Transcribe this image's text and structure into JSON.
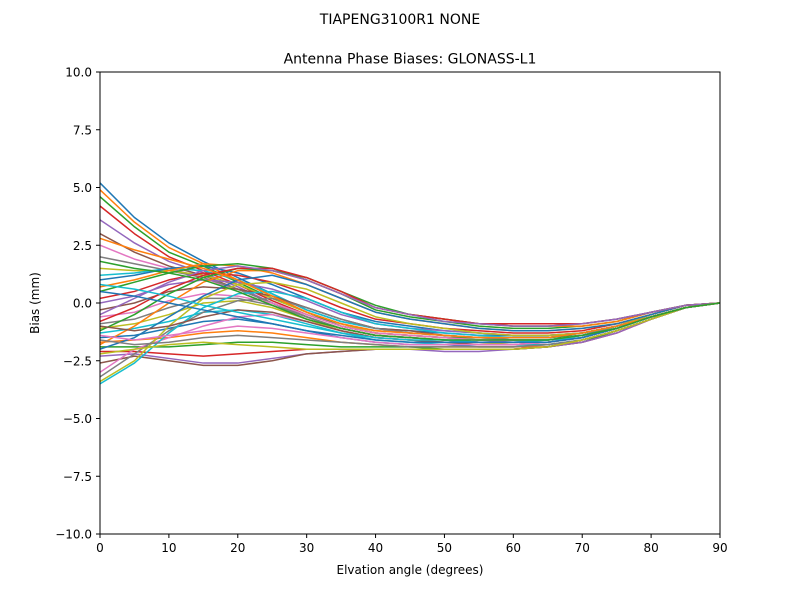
{
  "figure": {
    "suptitle": "TIAPENG3100R1   NONE"
  },
  "chart_data": {
    "type": "line",
    "title": "Antenna Phase Biases: GLONASS-L1",
    "xlabel": "Elvation angle (degrees)",
    "ylabel": "Bias (mm)",
    "xlim": [
      0,
      90
    ],
    "ylim": [
      -10,
      10
    ],
    "xticks": [
      0,
      10,
      20,
      30,
      40,
      50,
      60,
      70,
      80,
      90
    ],
    "yticks": [
      -10.0,
      -7.5,
      -5.0,
      -2.5,
      0.0,
      2.5,
      5.0,
      7.5,
      10.0
    ],
    "xtick_labels": [
      "0",
      "10",
      "20",
      "30",
      "40",
      "50",
      "60",
      "70",
      "80",
      "90"
    ],
    "ytick_labels": [
      "−10.0",
      "−7.5",
      "−5.0",
      "−2.5",
      "0.0",
      "2.5",
      "5.0",
      "7.5",
      "10.0"
    ],
    "grid": false,
    "legend": "none",
    "colors": [
      "#1f77b4",
      "#ff7f0e",
      "#2ca02c",
      "#d62728",
      "#9467bd",
      "#8c564b",
      "#e377c2",
      "#7f7f7f",
      "#bcbd22",
      "#17becf"
    ],
    "x": [
      0,
      5,
      10,
      15,
      20,
      25,
      30,
      35,
      40,
      45,
      50,
      55,
      60,
      65,
      70,
      75,
      80,
      85,
      90
    ],
    "series": [
      {
        "values": [
          5.2,
          3.7,
          2.6,
          1.8,
          1.1,
          0.4,
          -0.3,
          -0.8,
          -1.1,
          -1.2,
          -1.3,
          -1.4,
          -1.4,
          -1.4,
          -1.3,
          -1.0,
          -0.6,
          -0.2,
          0.0
        ]
      },
      {
        "values": [
          4.9,
          3.5,
          2.4,
          1.7,
          1.0,
          0.3,
          -0.4,
          -0.9,
          -1.2,
          -1.3,
          -1.4,
          -1.5,
          -1.5,
          -1.5,
          -1.3,
          -1.0,
          -0.6,
          -0.2,
          0.0
        ]
      },
      {
        "values": [
          4.6,
          3.3,
          2.2,
          1.6,
          0.9,
          0.2,
          -0.4,
          -1.0,
          -1.3,
          -1.4,
          -1.5,
          -1.5,
          -1.5,
          -1.5,
          -1.4,
          -1.0,
          -0.6,
          -0.2,
          0.0
        ]
      },
      {
        "values": [
          4.2,
          3.0,
          2.0,
          1.4,
          0.8,
          0.1,
          -0.5,
          -1.0,
          -1.3,
          -1.4,
          -1.5,
          -1.6,
          -1.6,
          -1.6,
          -1.4,
          -1.1,
          -0.6,
          -0.2,
          0.0
        ]
      },
      {
        "values": [
          3.6,
          2.6,
          1.8,
          1.3,
          0.7,
          0.0,
          -0.6,
          -1.1,
          -1.4,
          -1.5,
          -1.6,
          -1.6,
          -1.7,
          -1.6,
          -1.4,
          -1.1,
          -0.6,
          -0.2,
          0.0
        ]
      },
      {
        "values": [
          3.0,
          2.2,
          1.6,
          1.2,
          0.6,
          0.0,
          -0.6,
          -1.1,
          -1.4,
          -1.5,
          -1.6,
          -1.7,
          -1.7,
          -1.7,
          -1.5,
          -1.1,
          -0.6,
          -0.2,
          0.0
        ]
      },
      {
        "values": [
          2.5,
          1.9,
          1.5,
          1.1,
          0.5,
          -0.1,
          -0.7,
          -1.2,
          -1.5,
          -1.6,
          -1.7,
          -1.7,
          -1.8,
          -1.7,
          -1.5,
          -1.1,
          -0.6,
          -0.2,
          0.0
        ]
      },
      {
        "values": [
          2.0,
          1.7,
          1.4,
          1.1,
          0.6,
          0.0,
          -0.6,
          -1.1,
          -1.4,
          -1.5,
          -1.6,
          -1.7,
          -1.7,
          -1.7,
          -1.5,
          -1.1,
          -0.6,
          -0.2,
          0.0
        ]
      },
      {
        "values": [
          1.5,
          1.4,
          1.4,
          1.2,
          0.8,
          0.2,
          -0.4,
          -0.9,
          -1.3,
          -1.4,
          -1.5,
          -1.6,
          -1.6,
          -1.6,
          -1.4,
          -1.1,
          -0.6,
          -0.2,
          0.0
        ]
      },
      {
        "values": [
          1.2,
          1.3,
          1.5,
          1.4,
          1.0,
          0.4,
          -0.3,
          -0.8,
          -1.1,
          -1.3,
          -1.4,
          -1.5,
          -1.6,
          -1.6,
          -1.4,
          -1.0,
          -0.6,
          -0.2,
          0.0
        ]
      },
      {
        "values": [
          1.0,
          1.2,
          1.5,
          1.6,
          1.3,
          0.8,
          0.2,
          -0.4,
          -0.8,
          -1.0,
          -1.2,
          -1.3,
          -1.4,
          -1.4,
          -1.3,
          -1.0,
          -0.6,
          -0.2,
          0.0
        ]
      },
      {
        "values": [
          0.7,
          1.0,
          1.4,
          1.7,
          1.6,
          1.3,
          0.8,
          0.2,
          -0.4,
          -0.7,
          -0.9,
          -1.1,
          -1.2,
          -1.2,
          -1.1,
          -0.9,
          -0.5,
          -0.1,
          0.0
        ]
      },
      {
        "values": [
          0.5,
          0.9,
          1.3,
          1.6,
          1.7,
          1.5,
          1.0,
          0.4,
          -0.3,
          -0.6,
          -0.8,
          -1.0,
          -1.1,
          -1.1,
          -1.0,
          -0.8,
          -0.4,
          -0.1,
          0.0
        ]
      },
      {
        "values": [
          0.2,
          0.5,
          1.0,
          1.3,
          1.2,
          0.9,
          0.4,
          -0.2,
          -0.7,
          -0.9,
          -1.1,
          -1.2,
          -1.3,
          -1.3,
          -1.2,
          -0.9,
          -0.5,
          -0.1,
          0.0
        ]
      },
      {
        "values": [
          0.0,
          0.3,
          0.8,
          1.0,
          0.9,
          0.6,
          0.1,
          -0.5,
          -0.9,
          -1.1,
          -1.2,
          -1.3,
          -1.4,
          -1.4,
          -1.3,
          -1.0,
          -0.5,
          -0.1,
          0.0
        ]
      },
      {
        "values": [
          -0.3,
          0.0,
          0.5,
          0.7,
          0.6,
          0.3,
          -0.2,
          -0.7,
          -1.1,
          -1.2,
          -1.4,
          -1.5,
          -1.5,
          -1.5,
          -1.3,
          -1.0,
          -0.6,
          -0.2,
          0.0
        ]
      },
      {
        "values": [
          -0.6,
          -0.4,
          0.1,
          0.4,
          0.3,
          0.0,
          -0.5,
          -1.0,
          -1.3,
          -1.4,
          -1.5,
          -1.6,
          -1.6,
          -1.6,
          -1.4,
          -1.1,
          -0.6,
          -0.2,
          0.0
        ]
      },
      {
        "values": [
          -0.9,
          -0.7,
          -0.2,
          0.2,
          0.2,
          -0.1,
          -0.6,
          -1.1,
          -1.4,
          -1.5,
          -1.6,
          -1.7,
          -1.7,
          -1.7,
          -1.5,
          -1.1,
          -0.6,
          -0.2,
          0.0
        ]
      },
      {
        "values": [
          -1.1,
          -0.9,
          -0.5,
          0.0,
          0.1,
          -0.2,
          -0.7,
          -1.2,
          -1.5,
          -1.6,
          -1.7,
          -1.7,
          -1.8,
          -1.7,
          -1.5,
          -1.1,
          -0.6,
          -0.2,
          0.0
        ]
      },
      {
        "values": [
          -1.3,
          -1.1,
          -0.8,
          -0.4,
          -0.3,
          -0.5,
          -0.9,
          -1.3,
          -1.6,
          -1.7,
          -1.8,
          -1.8,
          -1.8,
          -1.8,
          -1.6,
          -1.2,
          -0.7,
          -0.2,
          0.0
        ]
      },
      {
        "values": [
          -1.5,
          -1.4,
          -1.1,
          -0.8,
          -0.7,
          -0.9,
          -1.2,
          -1.5,
          -1.7,
          -1.8,
          -1.8,
          -1.9,
          -1.9,
          -1.8,
          -1.6,
          -1.2,
          -0.7,
          -0.2,
          0.0
        ]
      },
      {
        "values": [
          -1.7,
          -1.6,
          -1.5,
          -1.3,
          -1.2,
          -1.3,
          -1.5,
          -1.7,
          -1.8,
          -1.9,
          -1.9,
          -1.9,
          -1.9,
          -1.9,
          -1.6,
          -1.2,
          -0.7,
          -0.2,
          0.0
        ]
      },
      {
        "values": [
          -1.9,
          -1.9,
          -1.9,
          -1.8,
          -1.7,
          -1.7,
          -1.8,
          -1.9,
          -1.9,
          -1.9,
          -2.0,
          -2.0,
          -2.0,
          -1.9,
          -1.7,
          -1.2,
          -0.7,
          -0.2,
          0.0
        ]
      },
      {
        "values": [
          -2.1,
          -2.1,
          -2.2,
          -2.3,
          -2.2,
          -2.1,
          -2.0,
          -2.0,
          -2.0,
          -2.0,
          -2.0,
          -2.0,
          -2.0,
          -1.9,
          -1.7,
          -1.3,
          -0.7,
          -0.2,
          0.0
        ]
      },
      {
        "values": [
          -2.3,
          -2.2,
          -2.4,
          -2.6,
          -2.6,
          -2.4,
          -2.2,
          -2.1,
          -2.0,
          -2.0,
          -2.1,
          -2.1,
          -2.0,
          -1.9,
          -1.7,
          -1.3,
          -0.7,
          -0.2,
          0.0
        ]
      },
      {
        "values": [
          -2.6,
          -2.3,
          -2.5,
          -2.7,
          -2.7,
          -2.5,
          -2.2,
          -2.1,
          -2.0,
          -2.0,
          -2.0,
          -2.0,
          -2.0,
          -1.9,
          -1.6,
          -1.2,
          -0.7,
          -0.2,
          0.0
        ]
      },
      {
        "values": [
          -3.0,
          -2.0,
          -1.5,
          -1.0,
          -0.6,
          -0.5,
          -0.8,
          -1.2,
          -1.5,
          -1.6,
          -1.7,
          -1.8,
          -1.8,
          -1.7,
          -1.5,
          -1.1,
          -0.6,
          -0.2,
          0.0
        ]
      },
      {
        "values": [
          -3.2,
          -2.2,
          -1.2,
          -0.4,
          0.1,
          0.2,
          -0.2,
          -0.7,
          -1.1,
          -1.3,
          -1.4,
          -1.5,
          -1.6,
          -1.6,
          -1.4,
          -1.0,
          -0.6,
          -0.2,
          0.0
        ]
      },
      {
        "values": [
          -3.4,
          -2.5,
          -1.0,
          0.2,
          0.8,
          0.9,
          0.6,
          0.0,
          -0.6,
          -0.9,
          -1.1,
          -1.3,
          -1.4,
          -1.4,
          -1.3,
          -1.0,
          -0.5,
          -0.1,
          0.0
        ]
      },
      {
        "values": [
          -3.5,
          -2.6,
          -1.3,
          -0.2,
          0.4,
          0.5,
          0.2,
          -0.4,
          -0.9,
          -1.1,
          -1.3,
          -1.4,
          -1.5,
          -1.5,
          -1.3,
          -1.0,
          -0.6,
          -0.2,
          0.0
        ]
      },
      {
        "values": [
          -2.0,
          -1.5,
          -0.6,
          0.3,
          1.0,
          1.2,
          0.8,
          0.2,
          -0.4,
          -0.7,
          -0.9,
          -1.1,
          -1.2,
          -1.2,
          -1.1,
          -0.9,
          -0.5,
          -0.1,
          0.0
        ]
      },
      {
        "values": [
          -1.8,
          -1.0,
          0.0,
          0.9,
          1.4,
          1.4,
          1.0,
          0.4,
          -0.2,
          -0.5,
          -0.7,
          -0.9,
          -1.0,
          -1.0,
          -1.0,
          -0.8,
          -0.4,
          -0.1,
          0.0
        ]
      },
      {
        "values": [
          -1.2,
          -0.5,
          0.4,
          1.1,
          1.5,
          1.4,
          1.1,
          0.5,
          -0.1,
          -0.5,
          -0.7,
          -0.9,
          -1.0,
          -1.0,
          -0.9,
          -0.7,
          -0.4,
          -0.1,
          0.0
        ]
      },
      {
        "values": [
          -0.8,
          -0.2,
          0.6,
          1.2,
          1.5,
          1.5,
          1.1,
          0.5,
          -0.2,
          -0.5,
          -0.7,
          -0.9,
          -0.9,
          -0.9,
          -0.9,
          -0.7,
          -0.4,
          -0.1,
          0.0
        ]
      },
      {
        "values": [
          -0.5,
          0.2,
          0.9,
          1.4,
          1.6,
          1.4,
          1.0,
          0.4,
          -0.2,
          -0.5,
          -0.8,
          -0.9,
          -1.0,
          -1.0,
          -0.9,
          -0.7,
          -0.4,
          -0.1,
          0.0
        ]
      },
      {
        "values": [
          -1.0,
          -1.2,
          -1.0,
          -0.6,
          -0.3,
          -0.4,
          -0.8,
          -1.2,
          -1.5,
          -1.6,
          -1.7,
          -1.8,
          -1.8,
          -1.7,
          -1.5,
          -1.1,
          -0.6,
          -0.2,
          0.0
        ]
      },
      {
        "values": [
          -1.4,
          -1.6,
          -1.4,
          -1.2,
          -1.0,
          -1.1,
          -1.3,
          -1.5,
          -1.7,
          -1.8,
          -1.8,
          -1.8,
          -1.8,
          -1.7,
          -1.5,
          -1.1,
          -0.6,
          -0.2,
          0.0
        ]
      },
      {
        "values": [
          -1.6,
          -1.8,
          -1.7,
          -1.5,
          -1.4,
          -1.5,
          -1.6,
          -1.7,
          -1.8,
          -1.9,
          -1.9,
          -1.9,
          -1.9,
          -1.8,
          -1.6,
          -1.2,
          -0.7,
          -0.2,
          0.0
        ]
      },
      {
        "values": [
          -2.2,
          -2.0,
          -1.8,
          -1.7,
          -1.8,
          -1.9,
          -2.0,
          -2.0,
          -2.0,
          -2.0,
          -2.0,
          -2.0,
          -2.0,
          -1.9,
          -1.6,
          -1.2,
          -0.7,
          -0.2,
          0.0
        ]
      },
      {
        "values": [
          0.8,
          0.6,
          0.3,
          -0.1,
          -0.4,
          -0.7,
          -1.0,
          -1.3,
          -1.5,
          -1.6,
          -1.6,
          -1.7,
          -1.7,
          -1.6,
          -1.5,
          -1.1,
          -0.6,
          -0.2,
          0.0
        ]
      },
      {
        "values": [
          0.5,
          0.3,
          0.0,
          -0.3,
          -0.6,
          -0.9,
          -1.2,
          -1.4,
          -1.6,
          -1.7,
          -1.7,
          -1.7,
          -1.7,
          -1.7,
          -1.5,
          -1.1,
          -0.6,
          -0.2,
          0.0
        ]
      },
      {
        "values": [
          2.8,
          2.3,
          1.9,
          1.5,
          1.0,
          0.3,
          -0.4,
          -0.9,
          -1.2,
          -1.3,
          -1.4,
          -1.5,
          -1.5,
          -1.5,
          -1.3,
          -1.0,
          -0.6,
          -0.2,
          0.0
        ]
      },
      {
        "values": [
          1.8,
          1.5,
          1.3,
          1.0,
          0.5,
          -0.1,
          -0.7,
          -1.1,
          -1.4,
          -1.5,
          -1.6,
          -1.6,
          -1.6,
          -1.6,
          -1.4,
          -1.1,
          -0.6,
          -0.2,
          0.0
        ]
      }
    ]
  }
}
